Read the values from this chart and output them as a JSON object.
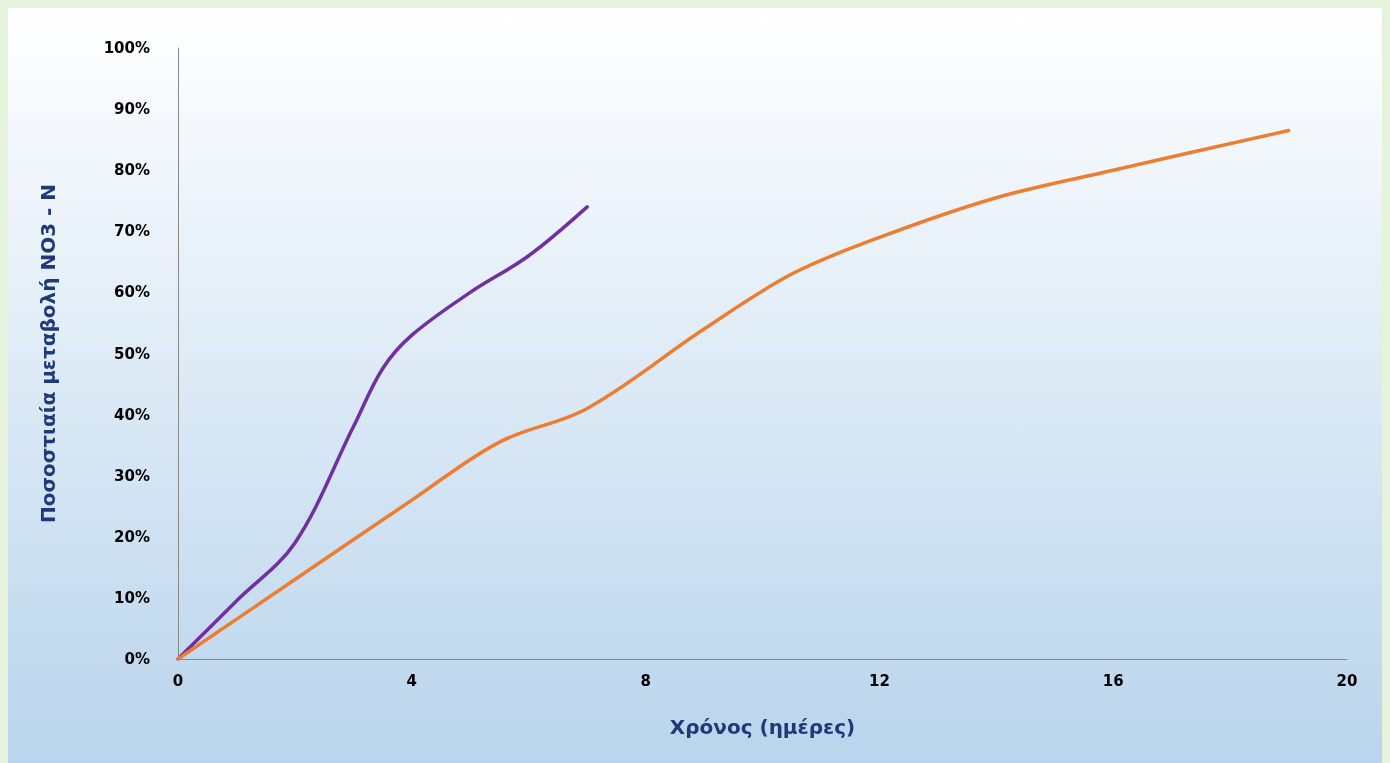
{
  "chart_data": {
    "type": "line",
    "xlabel": "Χρόνος (ημέρες)",
    "ylabel": "Ποσοστιαία μεταβολή NO3 - N",
    "xlim": [
      0,
      20
    ],
    "xticks": [
      0,
      4,
      8,
      12,
      16,
      20
    ],
    "ylim": [
      0,
      100
    ],
    "yticks": [
      {
        "value": 0,
        "label": "0%"
      },
      {
        "value": 10,
        "label": "10%"
      },
      {
        "value": 20,
        "label": "20%"
      },
      {
        "value": 30,
        "label": "30%"
      },
      {
        "value": 40,
        "label": "40%"
      },
      {
        "value": 50,
        "label": "50%"
      },
      {
        "value": 60,
        "label": "60%"
      },
      {
        "value": 70,
        "label": "70%"
      },
      {
        "value": 80,
        "label": "80%"
      },
      {
        "value": 90,
        "label": "90%"
      },
      {
        "value": 100,
        "label": "100%"
      }
    ],
    "grid": false,
    "marker": "none",
    "line_style": "solid",
    "series": [
      {
        "color": "#7030a0",
        "x": [
          0,
          1,
          2,
          3,
          3.5,
          4,
          5,
          6,
          7
        ],
        "values": [
          0,
          9.5,
          19,
          38,
          47.5,
          53,
          60,
          66,
          74
        ]
      },
      {
        "color": "#ed7d31",
        "x": [
          0,
          2,
          4,
          5.5,
          7,
          9,
          10.5,
          12,
          14,
          16,
          19
        ],
        "values": [
          0,
          13,
          26,
          35.5,
          41,
          54,
          63,
          69,
          75.5,
          80,
          86.5
        ]
      }
    ]
  }
}
